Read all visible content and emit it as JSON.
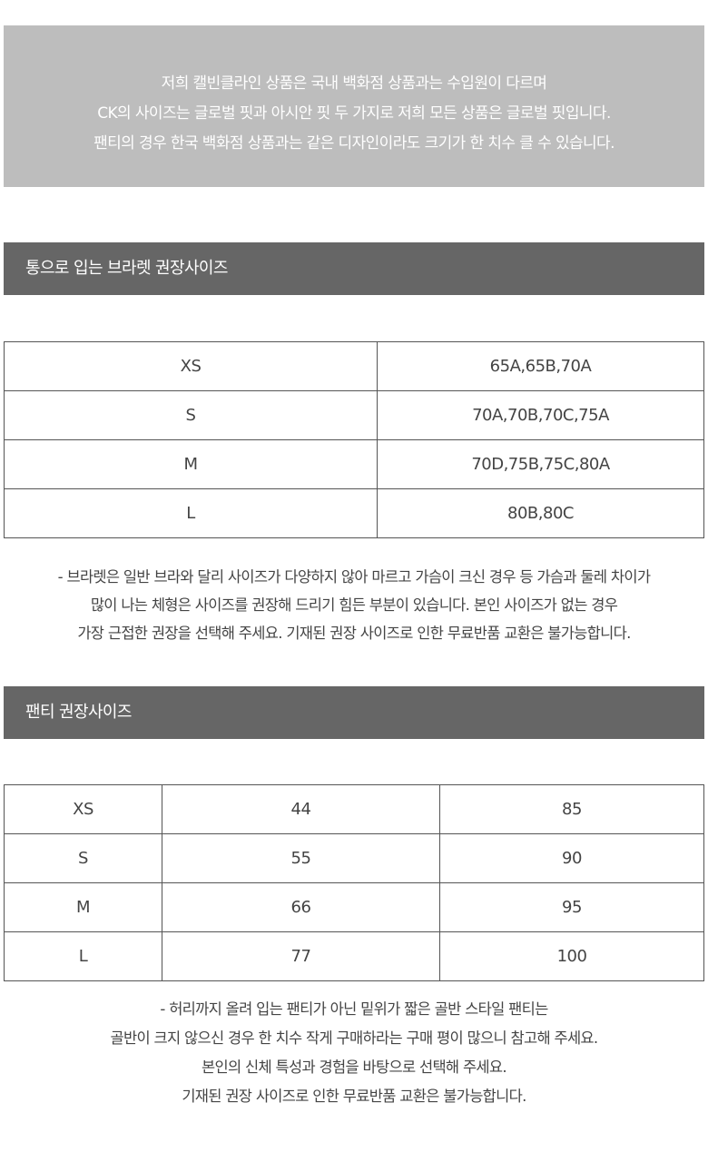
{
  "notice": {
    "lines": [
      "저희 캘빈클라인 상품은 국내 백화점 상품과는 수입원이 다르며",
      "CK의 사이즈는 글로벌 핏과 아시안 핏 두 가지로 저희 모든 상품은 글로벌 핏입니다.",
      "팬티의 경우 한국 백화점 상품과는 같은 디자인이라도 크기가 한 치수 클 수 있습니다."
    ],
    "background": "#bdbdbd"
  },
  "bralette": {
    "title": "통으로 입는 브라렛 권장사이즈",
    "rows": [
      [
        "XS",
        "65A,65B,70A"
      ],
      [
        "S",
        "70A,70B,70C,75A"
      ],
      [
        "M",
        "70D,75B,75C,80A"
      ],
      [
        "L",
        "80B,80C"
      ]
    ],
    "note": [
      "- 브라렛은 일반 브라와 달리 사이즈가 다양하지 않아 마르고 가슴이 크신 경우 등 가슴과 둘레 차이가",
      "많이 나는 체형은 사이즈를 권장해 드리기 힘든 부분이 있습니다. 본인 사이즈가 없는 경우",
      "가장 근접한 권장을 선택해 주세요. 기재된 권장 사이즈로 인한 무료반품 교환은 불가능합니다."
    ]
  },
  "panty": {
    "title": "팬티 권장사이즈",
    "rows": [
      [
        "XS",
        "44",
        "85"
      ],
      [
        "S",
        "55",
        "90"
      ],
      [
        "M",
        "66",
        "95"
      ],
      [
        "L",
        "77",
        "100"
      ]
    ],
    "note": [
      "- 허리까지 올려 입는 팬티가 아닌 밑위가 짧은 골반 스타일 팬티는",
      "골반이 크지 않으신 경우 한 치수 작게 구매하라는 구매 평이 많으니 참고해 주세요.",
      "본인의 신체 특성과 경험을 바탕으로 선택해 주세요.",
      "기재된 권장 사이즈로 인한 무료반품 교환은 불가능합니다."
    ]
  },
  "header_color": "#666666"
}
